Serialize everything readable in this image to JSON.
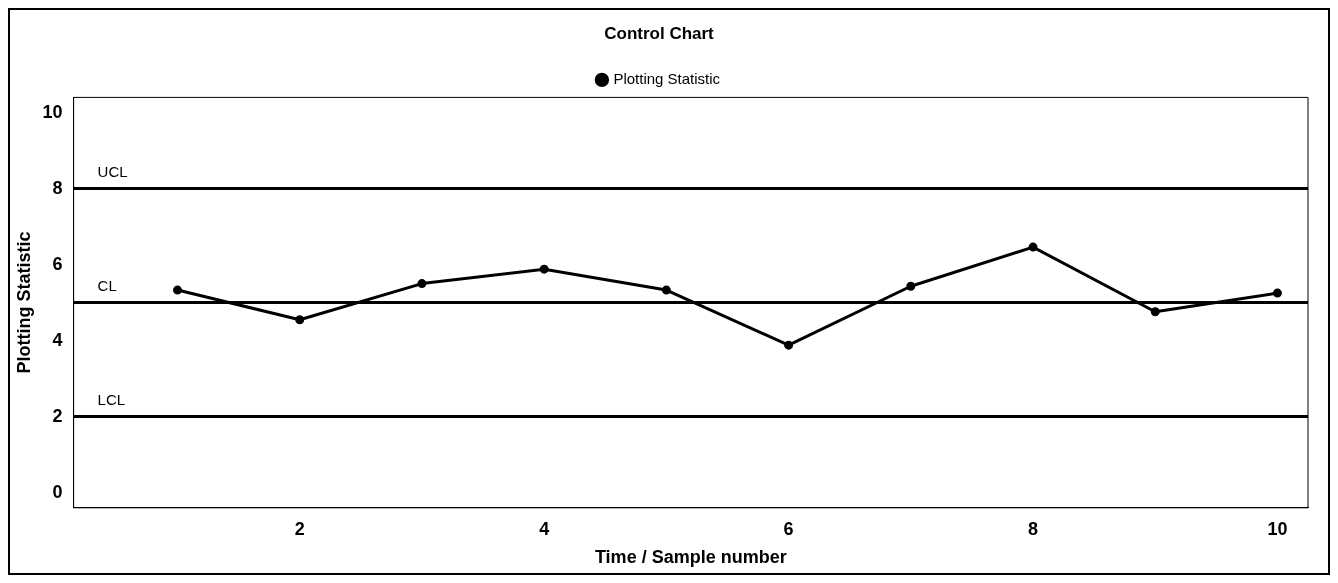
{
  "chart_data": {
    "type": "line",
    "title": "Control Chart",
    "xlabel": "Time / Sample number",
    "ylabel": "Plotting Statistic",
    "x": [
      1,
      2,
      3,
      4,
      5,
      6,
      7,
      8,
      9,
      10
    ],
    "series": [
      {
        "name": "Plotting Statistic",
        "color": "#000000",
        "values": [
          5.33,
          4.55,
          5.5,
          5.88,
          5.33,
          3.88,
          5.43,
          6.46,
          4.76,
          5.25
        ]
      }
    ],
    "xlim": [
      0.15,
      10.25
    ],
    "xticks": [
      2,
      4,
      6,
      8,
      10
    ],
    "ylim": [
      -0.4,
      10.4
    ],
    "yticks": [
      0,
      2,
      4,
      6,
      8,
      10
    ],
    "ref_lines": [
      {
        "axis": "y",
        "value": 8,
        "label": "UCL",
        "color": "#000000"
      },
      {
        "axis": "y",
        "value": 5,
        "label": "CL",
        "color": "#000000"
      },
      {
        "axis": "y",
        "value": 2,
        "label": "LCL",
        "color": "#000000"
      }
    ],
    "grid": false,
    "legend": "top",
    "marker": "circle",
    "line_style": "solid"
  }
}
